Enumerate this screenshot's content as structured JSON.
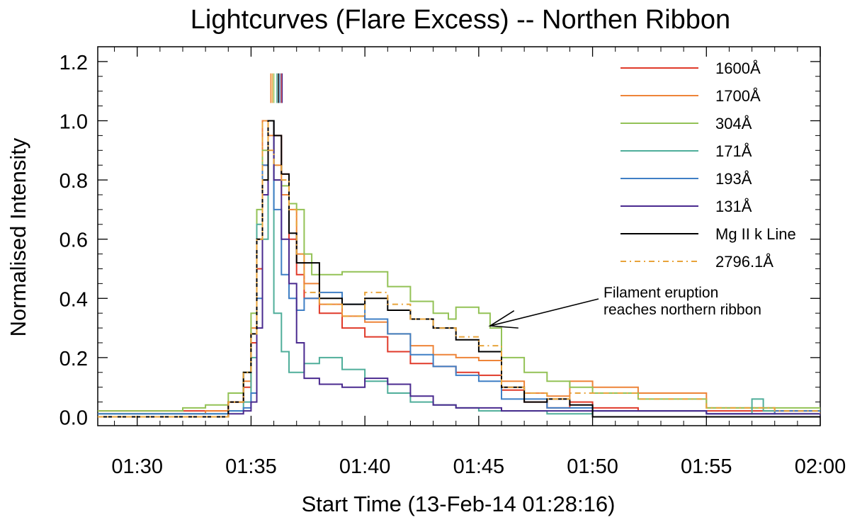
{
  "chart_data": {
    "type": "line",
    "title": "Lightcurves (Flare Excess) -- Northen Ribbon",
    "xlabel": "Start Time (13-Feb-14 01:28:16)",
    "ylabel": "Normalised Intensity",
    "xlim": [
      "01:28:16",
      "02:00:00"
    ],
    "ylim": [
      -0.03,
      1.25
    ],
    "x_ticks": [
      "01:30",
      "01:35",
      "01:40",
      "01:45",
      "01:50",
      "01:55",
      "02:00"
    ],
    "y_ticks": [
      "0.0",
      "0.2",
      "0.4",
      "0.6",
      "0.8",
      "1.0",
      "1.2"
    ],
    "legend_position": "top-right",
    "step_plot": true,
    "peak_markers_y_range": [
      1.06,
      1.16
    ],
    "series": [
      {
        "name": "1600Å",
        "color": "#e03a2a",
        "dash": "",
        "peak_marker": "01:36:20",
        "x": [
          "01:28:16",
          "01:33:00",
          "01:34:00",
          "01:34:40",
          "01:35:00",
          "01:35:15",
          "01:35:30",
          "01:35:45",
          "01:36:00",
          "01:36:20",
          "01:36:40",
          "01:37:00",
          "01:37:20",
          "01:38:00",
          "01:39:00",
          "01:40:00",
          "01:41:00",
          "01:42:00",
          "01:43:00",
          "01:44:00",
          "01:45:00",
          "01:46:00",
          "01:47:00",
          "01:48:00",
          "01:49:00",
          "01:50:00",
          "01:52:00",
          "01:55:00",
          "01:58:00",
          "02:00:00"
        ],
        "y": [
          0.02,
          0.02,
          0.05,
          0.1,
          0.25,
          0.5,
          0.85,
          1.0,
          0.95,
          0.82,
          0.6,
          0.48,
          0.4,
          0.35,
          0.3,
          0.27,
          0.22,
          0.18,
          0.17,
          0.15,
          0.14,
          0.09,
          0.05,
          0.03,
          0.05,
          0.03,
          0.02,
          0.02,
          0.02,
          0.01
        ]
      },
      {
        "name": "1700Å",
        "color": "#ee8438",
        "dash": "",
        "peak_marker": "01:35:52",
        "x": [
          "01:28:16",
          "01:33:00",
          "01:34:00",
          "01:34:40",
          "01:35:00",
          "01:35:15",
          "01:35:30",
          "01:35:45",
          "01:36:00",
          "01:36:20",
          "01:36:40",
          "01:37:00",
          "01:37:20",
          "01:38:00",
          "01:39:00",
          "01:40:00",
          "01:41:00",
          "01:42:00",
          "01:43:00",
          "01:44:00",
          "01:45:00",
          "01:46:00",
          "01:47:00",
          "01:48:00",
          "01:49:00",
          "01:50:00",
          "01:52:00",
          "01:55:00",
          "01:58:00",
          "02:00:00"
        ],
        "y": [
          0.01,
          0.02,
          0.05,
          0.12,
          0.3,
          0.6,
          1.0,
          0.95,
          0.85,
          0.75,
          0.7,
          0.55,
          0.45,
          0.38,
          0.34,
          0.32,
          0.28,
          0.24,
          0.21,
          0.2,
          0.19,
          0.12,
          0.08,
          0.07,
          0.12,
          0.1,
          0.08,
          0.03,
          0.02,
          0.01
        ]
      },
      {
        "name": "304Å",
        "color": "#93c256",
        "dash": "",
        "peak_marker": "01:36:00",
        "x": [
          "01:28:16",
          "01:31:00",
          "01:32:00",
          "01:33:00",
          "01:34:00",
          "01:34:40",
          "01:35:00",
          "01:35:15",
          "01:35:30",
          "01:35:45",
          "01:36:00",
          "01:36:20",
          "01:36:40",
          "01:37:00",
          "01:37:20",
          "01:37:40",
          "01:38:00",
          "01:39:00",
          "01:40:00",
          "01:41:00",
          "01:42:00",
          "01:43:00",
          "01:43:40",
          "01:44:00",
          "01:45:00",
          "01:45:30",
          "01:46:00",
          "01:47:00",
          "01:48:00",
          "01:49:00",
          "01:50:00",
          "01:52:00",
          "01:55:00",
          "01:58:00",
          "02:00:00"
        ],
        "y": [
          0.02,
          0.02,
          0.03,
          0.04,
          0.08,
          0.15,
          0.35,
          0.7,
          0.9,
          1.0,
          0.8,
          0.78,
          0.72,
          0.7,
          0.55,
          0.48,
          0.48,
          0.49,
          0.49,
          0.44,
          0.39,
          0.35,
          0.33,
          0.37,
          0.35,
          0.3,
          0.2,
          0.15,
          0.12,
          0.1,
          0.08,
          0.06,
          0.03,
          0.03,
          0.02
        ]
      },
      {
        "name": "171Å",
        "color": "#4fae9a",
        "dash": "",
        "peak_marker": "01:36:08",
        "x": [
          "01:28:16",
          "01:33:00",
          "01:34:00",
          "01:34:40",
          "01:35:00",
          "01:35:15",
          "01:35:30",
          "01:35:45",
          "01:36:00",
          "01:36:20",
          "01:36:40",
          "01:37:00",
          "01:37:20",
          "01:38:00",
          "01:39:00",
          "01:40:00",
          "01:41:00",
          "01:42:00",
          "01:43:00",
          "01:44:00",
          "01:45:00",
          "01:46:00",
          "01:48:00",
          "01:50:00",
          "01:55:00",
          "01:57:00",
          "01:57:30",
          "01:58:00",
          "02:00:00"
        ],
        "y": [
          0.01,
          0.01,
          0.02,
          0.05,
          0.2,
          0.65,
          0.6,
          1.0,
          0.35,
          0.22,
          0.15,
          0.15,
          0.18,
          0.2,
          0.16,
          0.12,
          0.08,
          0.05,
          0.04,
          0.03,
          0.02,
          0.02,
          0.01,
          0.02,
          0.01,
          0.06,
          0.02,
          0.01,
          0.01
        ]
      },
      {
        "name": "193Å",
        "color": "#3f7fc5",
        "dash": "",
        "peak_marker": "01:36:16",
        "x": [
          "01:28:16",
          "01:33:00",
          "01:34:00",
          "01:34:40",
          "01:35:00",
          "01:35:15",
          "01:35:30",
          "01:35:45",
          "01:36:00",
          "01:36:20",
          "01:36:40",
          "01:37:00",
          "01:37:20",
          "01:38:00",
          "01:39:00",
          "01:40:00",
          "01:41:00",
          "01:42:00",
          "01:43:00",
          "01:44:00",
          "01:45:00",
          "01:46:00",
          "01:48:00",
          "01:50:00",
          "01:55:00",
          "01:58:00",
          "02:00:00"
        ],
        "y": [
          0.01,
          0.01,
          0.02,
          0.03,
          0.08,
          0.4,
          0.85,
          1.0,
          0.7,
          0.48,
          0.4,
          0.36,
          0.4,
          0.42,
          0.38,
          0.33,
          0.28,
          0.21,
          0.17,
          0.14,
          0.12,
          0.06,
          0.03,
          0.02,
          0.01,
          0.02,
          0.01
        ]
      },
      {
        "name": "131Å",
        "color": "#4a2a8f",
        "dash": "",
        "peak_marker": "01:36:22",
        "x": [
          "01:28:16",
          "01:33:00",
          "01:34:00",
          "01:34:40",
          "01:35:00",
          "01:35:15",
          "01:35:30",
          "01:35:45",
          "01:36:00",
          "01:36:20",
          "01:36:40",
          "01:37:00",
          "01:37:20",
          "01:38:00",
          "01:39:00",
          "01:40:00",
          "01:41:00",
          "01:42:00",
          "01:43:00",
          "01:44:00",
          "01:45:00",
          "01:46:00",
          "01:48:00",
          "01:50:00",
          "01:55:00",
          "01:58:00",
          "02:00:00"
        ],
        "y": [
          0.0,
          0.0,
          0.01,
          0.02,
          0.05,
          0.3,
          0.75,
          1.0,
          0.8,
          0.6,
          0.45,
          0.25,
          0.13,
          0.11,
          0.1,
          0.13,
          0.11,
          0.07,
          0.04,
          0.03,
          0.03,
          0.02,
          0.02,
          0.02,
          0.01,
          0.01,
          0.0
        ]
      },
      {
        "name": "Mg II k Line",
        "color": "#000000",
        "dash": "",
        "peak_marker": "01:36:12",
        "x": [
          "01:28:16",
          "01:33:00",
          "01:34:00",
          "01:34:40",
          "01:35:00",
          "01:35:15",
          "01:35:30",
          "01:35:45",
          "01:36:00",
          "01:36:20",
          "01:36:40",
          "01:37:00",
          "01:38:00",
          "01:39:00",
          "01:40:00",
          "01:41:00",
          "01:42:00",
          "01:43:00",
          "01:44:00",
          "01:45:00",
          "01:46:00",
          "01:47:00",
          "01:48:00",
          "01:49:00",
          "01:50:00"
        ],
        "y": [
          0.0,
          0.0,
          0.05,
          0.15,
          0.28,
          0.6,
          0.8,
          1.0,
          0.95,
          0.82,
          0.62,
          0.52,
          0.4,
          0.38,
          0.4,
          0.36,
          0.33,
          0.3,
          0.26,
          0.22,
          0.1,
          0.05,
          0.06,
          0.04,
          0.0
        ]
      },
      {
        "name": "2796.1Å",
        "color": "#e8a33a",
        "dash": "8 5 2 5",
        "peak_marker": "01:35:56",
        "x": [
          "01:28:16",
          "01:33:00",
          "01:34:00",
          "01:34:40",
          "01:35:00",
          "01:35:15",
          "01:35:30",
          "01:35:45",
          "01:36:00",
          "01:36:20",
          "01:36:40",
          "01:37:00",
          "01:37:20",
          "01:38:00",
          "01:39:00",
          "01:40:00",
          "01:41:00",
          "01:42:00",
          "01:43:00",
          "01:44:00",
          "01:45:00",
          "01:46:00",
          "01:47:00",
          "01:48:00",
          "01:49:00",
          "01:50:00",
          "01:52:00",
          "01:55:00",
          "01:58:00",
          "02:00:00"
        ],
        "y": [
          0.0,
          0.0,
          0.05,
          0.15,
          0.28,
          0.6,
          1.0,
          0.9,
          0.85,
          0.8,
          0.7,
          0.55,
          0.42,
          0.38,
          0.34,
          0.42,
          0.38,
          0.33,
          0.3,
          0.27,
          0.24,
          0.1,
          0.08,
          0.06,
          0.08,
          0.08,
          0.06,
          0.03,
          0.02,
          0.01
        ]
      }
    ],
    "annotation": {
      "lines": [
        "Filament eruption",
        "reaches northern ribbon"
      ],
      "arrow_target": {
        "x": "01:45:30",
        "y": 0.3
      }
    }
  }
}
